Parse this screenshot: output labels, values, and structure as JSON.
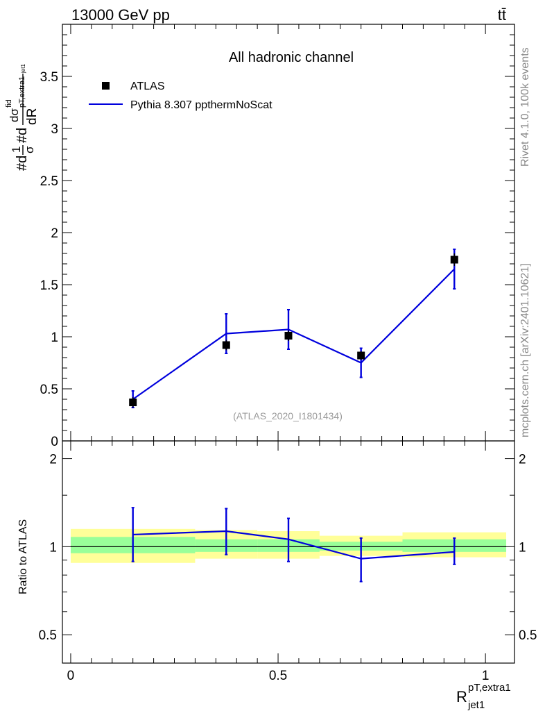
{
  "header": {
    "left": "13000 GeV pp",
    "right": "tt̄"
  },
  "side_labels": {
    "rivet": "Rivet 4.1.0,  100k events",
    "mcplots": "mcplots.cern.ch [arXiv:2401.10621]"
  },
  "chart_data": [
    {
      "type": "line",
      "title": "All hadronic channel",
      "ylabel": "#d1/σ#ddσ^fid/dR^pT,extra1_jet1",
      "ylabel_parts": {
        "a": "#d",
        "b": "1",
        "c": "σ",
        "d": "#d",
        "e": "dσ",
        "f": "fid",
        "g": "pT,extra1",
        "h": "jet1",
        "i": "dR"
      },
      "xlim": [
        -0.02,
        1.07
      ],
      "ylim": [
        0,
        4
      ],
      "yticks": [
        {
          "v": 0,
          "label": "0"
        },
        {
          "v": 0.5,
          "label": "0.5"
        },
        {
          "v": 1,
          "label": "1"
        },
        {
          "v": 1.5,
          "label": "1.5"
        },
        {
          "v": 2,
          "label": "2"
        },
        {
          "v": 2.5,
          "label": "2.5"
        },
        {
          "v": 3,
          "label": "3"
        },
        {
          "v": 3.5,
          "label": "3.5"
        }
      ],
      "watermark": "(ATLAS_2020_I1801434)",
      "legend": [
        {
          "name": "ATLAS",
          "marker": "square",
          "color": "#000000"
        },
        {
          "name": "Pythia 8.307 ppthermNoScat",
          "marker": "line",
          "color": "#0000dd"
        }
      ],
      "series": [
        {
          "name": "ATLAS",
          "color": "#000000",
          "points": [
            {
              "x": 0.15,
              "y": 0.37,
              "err_lo": 0.05,
              "err_hi": 0.05
            },
            {
              "x": 0.375,
              "y": 0.92,
              "err_lo": 0.05,
              "err_hi": 0.05
            },
            {
              "x": 0.525,
              "y": 1.01,
              "err_lo": 0.05,
              "err_hi": 0.05
            },
            {
              "x": 0.7,
              "y": 0.82,
              "err_lo": 0.04,
              "err_hi": 0.04
            },
            {
              "x": 0.925,
              "y": 1.74,
              "err_lo": 0.06,
              "err_hi": 0.06
            }
          ]
        },
        {
          "name": "Pythia 8.307 ppthermNoScat",
          "color": "#0000dd",
          "points": [
            {
              "x": 0.15,
              "y": 0.4,
              "err_lo": 0.08,
              "err_hi": 0.08
            },
            {
              "x": 0.375,
              "y": 1.03,
              "err_lo": 0.19,
              "err_hi": 0.19
            },
            {
              "x": 0.525,
              "y": 1.07,
              "err_lo": 0.19,
              "err_hi": 0.19
            },
            {
              "x": 0.7,
              "y": 0.75,
              "err_lo": 0.14,
              "err_hi": 0.14
            },
            {
              "x": 0.925,
              "y": 1.65,
              "err_lo": 0.19,
              "err_hi": 0.19
            }
          ]
        }
      ]
    },
    {
      "type": "line",
      "title": "",
      "ylabel": "Ratio to ATLAS",
      "xlabel": "R^pT,extra1_jet1",
      "xlabel_parts": {
        "main": "R",
        "sup": "pT,extra1",
        "sub": "jet1"
      },
      "xlim": [
        -0.02,
        1.07
      ],
      "ylim": [
        0.4,
        2.3
      ],
      "yscale": "log",
      "yticks": [
        {
          "v": 0.5,
          "label": "0.5"
        },
        {
          "v": 1,
          "label": "1"
        },
        {
          "v": 2,
          "label": "2"
        }
      ],
      "xticks": [
        {
          "v": 0,
          "label": "0"
        },
        {
          "v": 0.5,
          "label": "0.5"
        },
        {
          "v": 1,
          "label": "1"
        }
      ],
      "bands": [
        {
          "x0": 0.0,
          "x1": 0.3,
          "yellow": [
            0.88,
            1.15
          ],
          "green": [
            0.95,
            1.08
          ]
        },
        {
          "x0": 0.3,
          "x1": 0.45,
          "yellow": [
            0.91,
            1.14
          ],
          "green": [
            0.96,
            1.06
          ]
        },
        {
          "x0": 0.45,
          "x1": 0.6,
          "yellow": [
            0.91,
            1.13
          ],
          "green": [
            0.96,
            1.06
          ]
        },
        {
          "x0": 0.6,
          "x1": 0.8,
          "yellow": [
            0.93,
            1.09
          ],
          "green": [
            0.97,
            1.04
          ]
        },
        {
          "x0": 0.8,
          "x1": 1.05,
          "yellow": [
            0.92,
            1.12
          ],
          "green": [
            0.96,
            1.06
          ]
        }
      ],
      "series": [
        {
          "name": "Pythia 8.307 ppthermNoScat",
          "color": "#0000dd",
          "points": [
            {
              "x": 0.15,
              "y": 1.1,
              "err_lo": 0.21,
              "err_hi": 0.26
            },
            {
              "x": 0.375,
              "y": 1.13,
              "err_lo": 0.19,
              "err_hi": 0.22
            },
            {
              "x": 0.525,
              "y": 1.06,
              "err_lo": 0.17,
              "err_hi": 0.19
            },
            {
              "x": 0.7,
              "y": 0.91,
              "err_lo": 0.15,
              "err_hi": 0.16
            },
            {
              "x": 0.925,
              "y": 0.96,
              "err_lo": 0.09,
              "err_hi": 0.11
            }
          ]
        }
      ]
    }
  ]
}
